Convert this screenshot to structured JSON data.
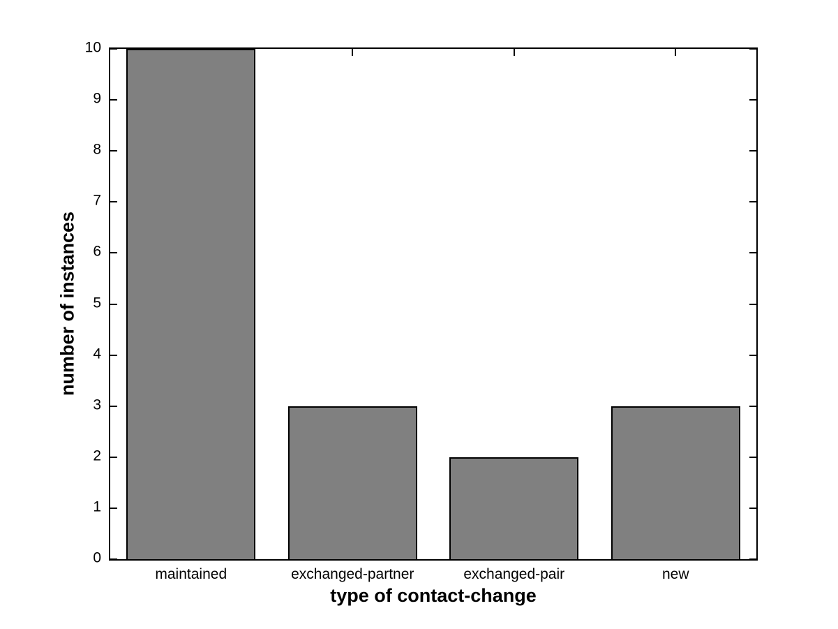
{
  "figure": {
    "background": "#ffffff"
  },
  "chart_data": {
    "type": "bar",
    "categories": [
      "maintained",
      "exchanged-partner",
      "exchanged-pair",
      "new"
    ],
    "values": [
      10,
      3,
      2,
      3
    ],
    "title": "",
    "xlabel": "type of contact-change",
    "ylabel": "number of instances",
    "ylim": [
      0,
      10
    ],
    "yticks": [
      0,
      1,
      2,
      3,
      4,
      5,
      6,
      7,
      8,
      9,
      10
    ],
    "ytick_labels": [
      "0",
      "1",
      "2",
      "3",
      "4",
      "5",
      "6",
      "7",
      "8",
      "9",
      "10"
    ],
    "bar_width_fraction": 0.8,
    "grid": false,
    "legend": null,
    "tick_direction": "in",
    "box": true,
    "colors": {
      "bar_fill": "#808080",
      "bar_edge": "#000000",
      "axis": "#000000",
      "text": "#000000",
      "plot_background": "#ffffff"
    }
  }
}
